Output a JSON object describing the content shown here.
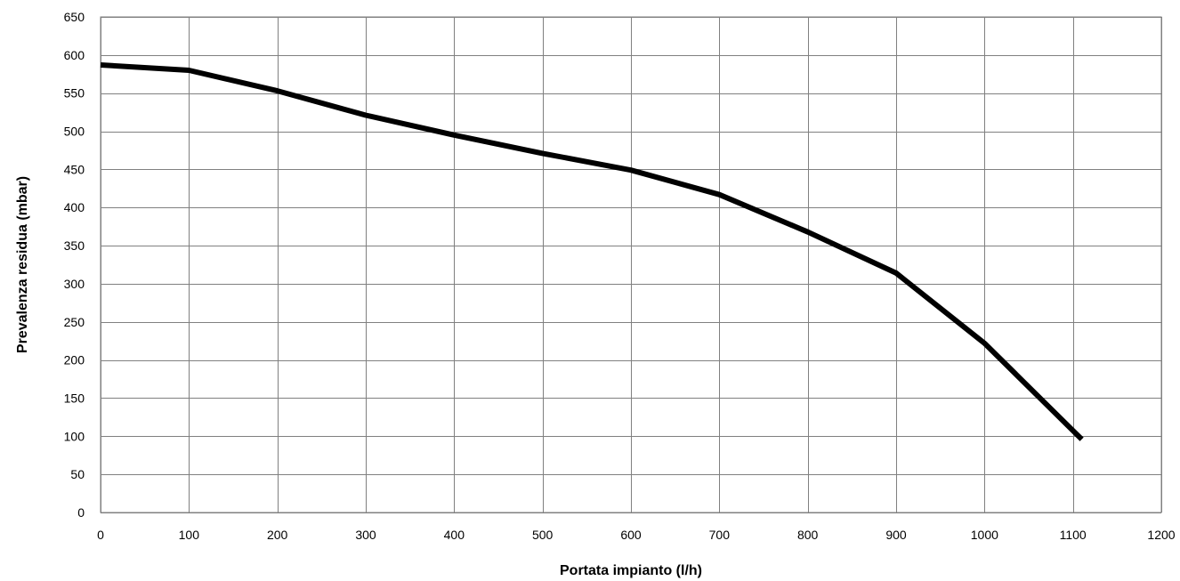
{
  "chart_data": {
    "type": "line",
    "title": "",
    "xlabel": "Portata impianto (l/h)",
    "ylabel": "Prevalenza residua (mbar)",
    "xlim": [
      0,
      1200
    ],
    "ylim": [
      0,
      650
    ],
    "x_ticks": [
      0,
      100,
      200,
      300,
      400,
      500,
      600,
      700,
      800,
      900,
      1000,
      1100,
      1200
    ],
    "y_ticks": [
      0,
      50,
      100,
      150,
      200,
      250,
      300,
      350,
      400,
      450,
      500,
      550,
      600,
      650
    ],
    "grid": true,
    "legend": "none",
    "series": [
      {
        "color": "#000000",
        "x": [
          0,
          100,
          200,
          300,
          400,
          500,
          600,
          700,
          800,
          900,
          1000,
          1110
        ],
        "y": [
          587,
          580,
          553,
          521,
          495,
          471,
          449,
          417,
          368,
          314,
          222,
          96
        ]
      }
    ]
  }
}
